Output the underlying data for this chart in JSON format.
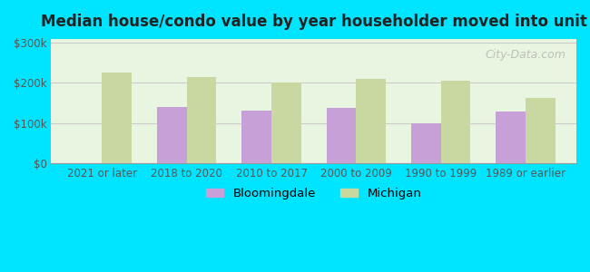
{
  "title": "Median house/condo value by year householder moved into unit",
  "categories": [
    "2021 or later",
    "2018 to 2020",
    "2010 to 2017",
    "2000 to 2009",
    "1990 to 1999",
    "1989 or earlier"
  ],
  "bloomingdale": [
    null,
    140000,
    130000,
    137000,
    100000,
    128000
  ],
  "michigan": [
    225000,
    215000,
    200000,
    210000,
    205000,
    163000
  ],
  "bloomingdale_color": "#c8a0d8",
  "michigan_color": "#c8d8a0",
  "background_outer": "#00e5ff",
  "background_inner": "#e8f5e0",
  "yticks": [
    0,
    100000,
    200000,
    300000
  ],
  "ytick_labels": [
    "$0",
    "$100k",
    "$200k",
    "$300k"
  ],
  "ylim": [
    0,
    310000
  ],
  "bar_width": 0.35,
  "legend_bloomingdale": "Bloomingdale",
  "legend_michigan": "Michigan",
  "watermark": "City-Data.com"
}
